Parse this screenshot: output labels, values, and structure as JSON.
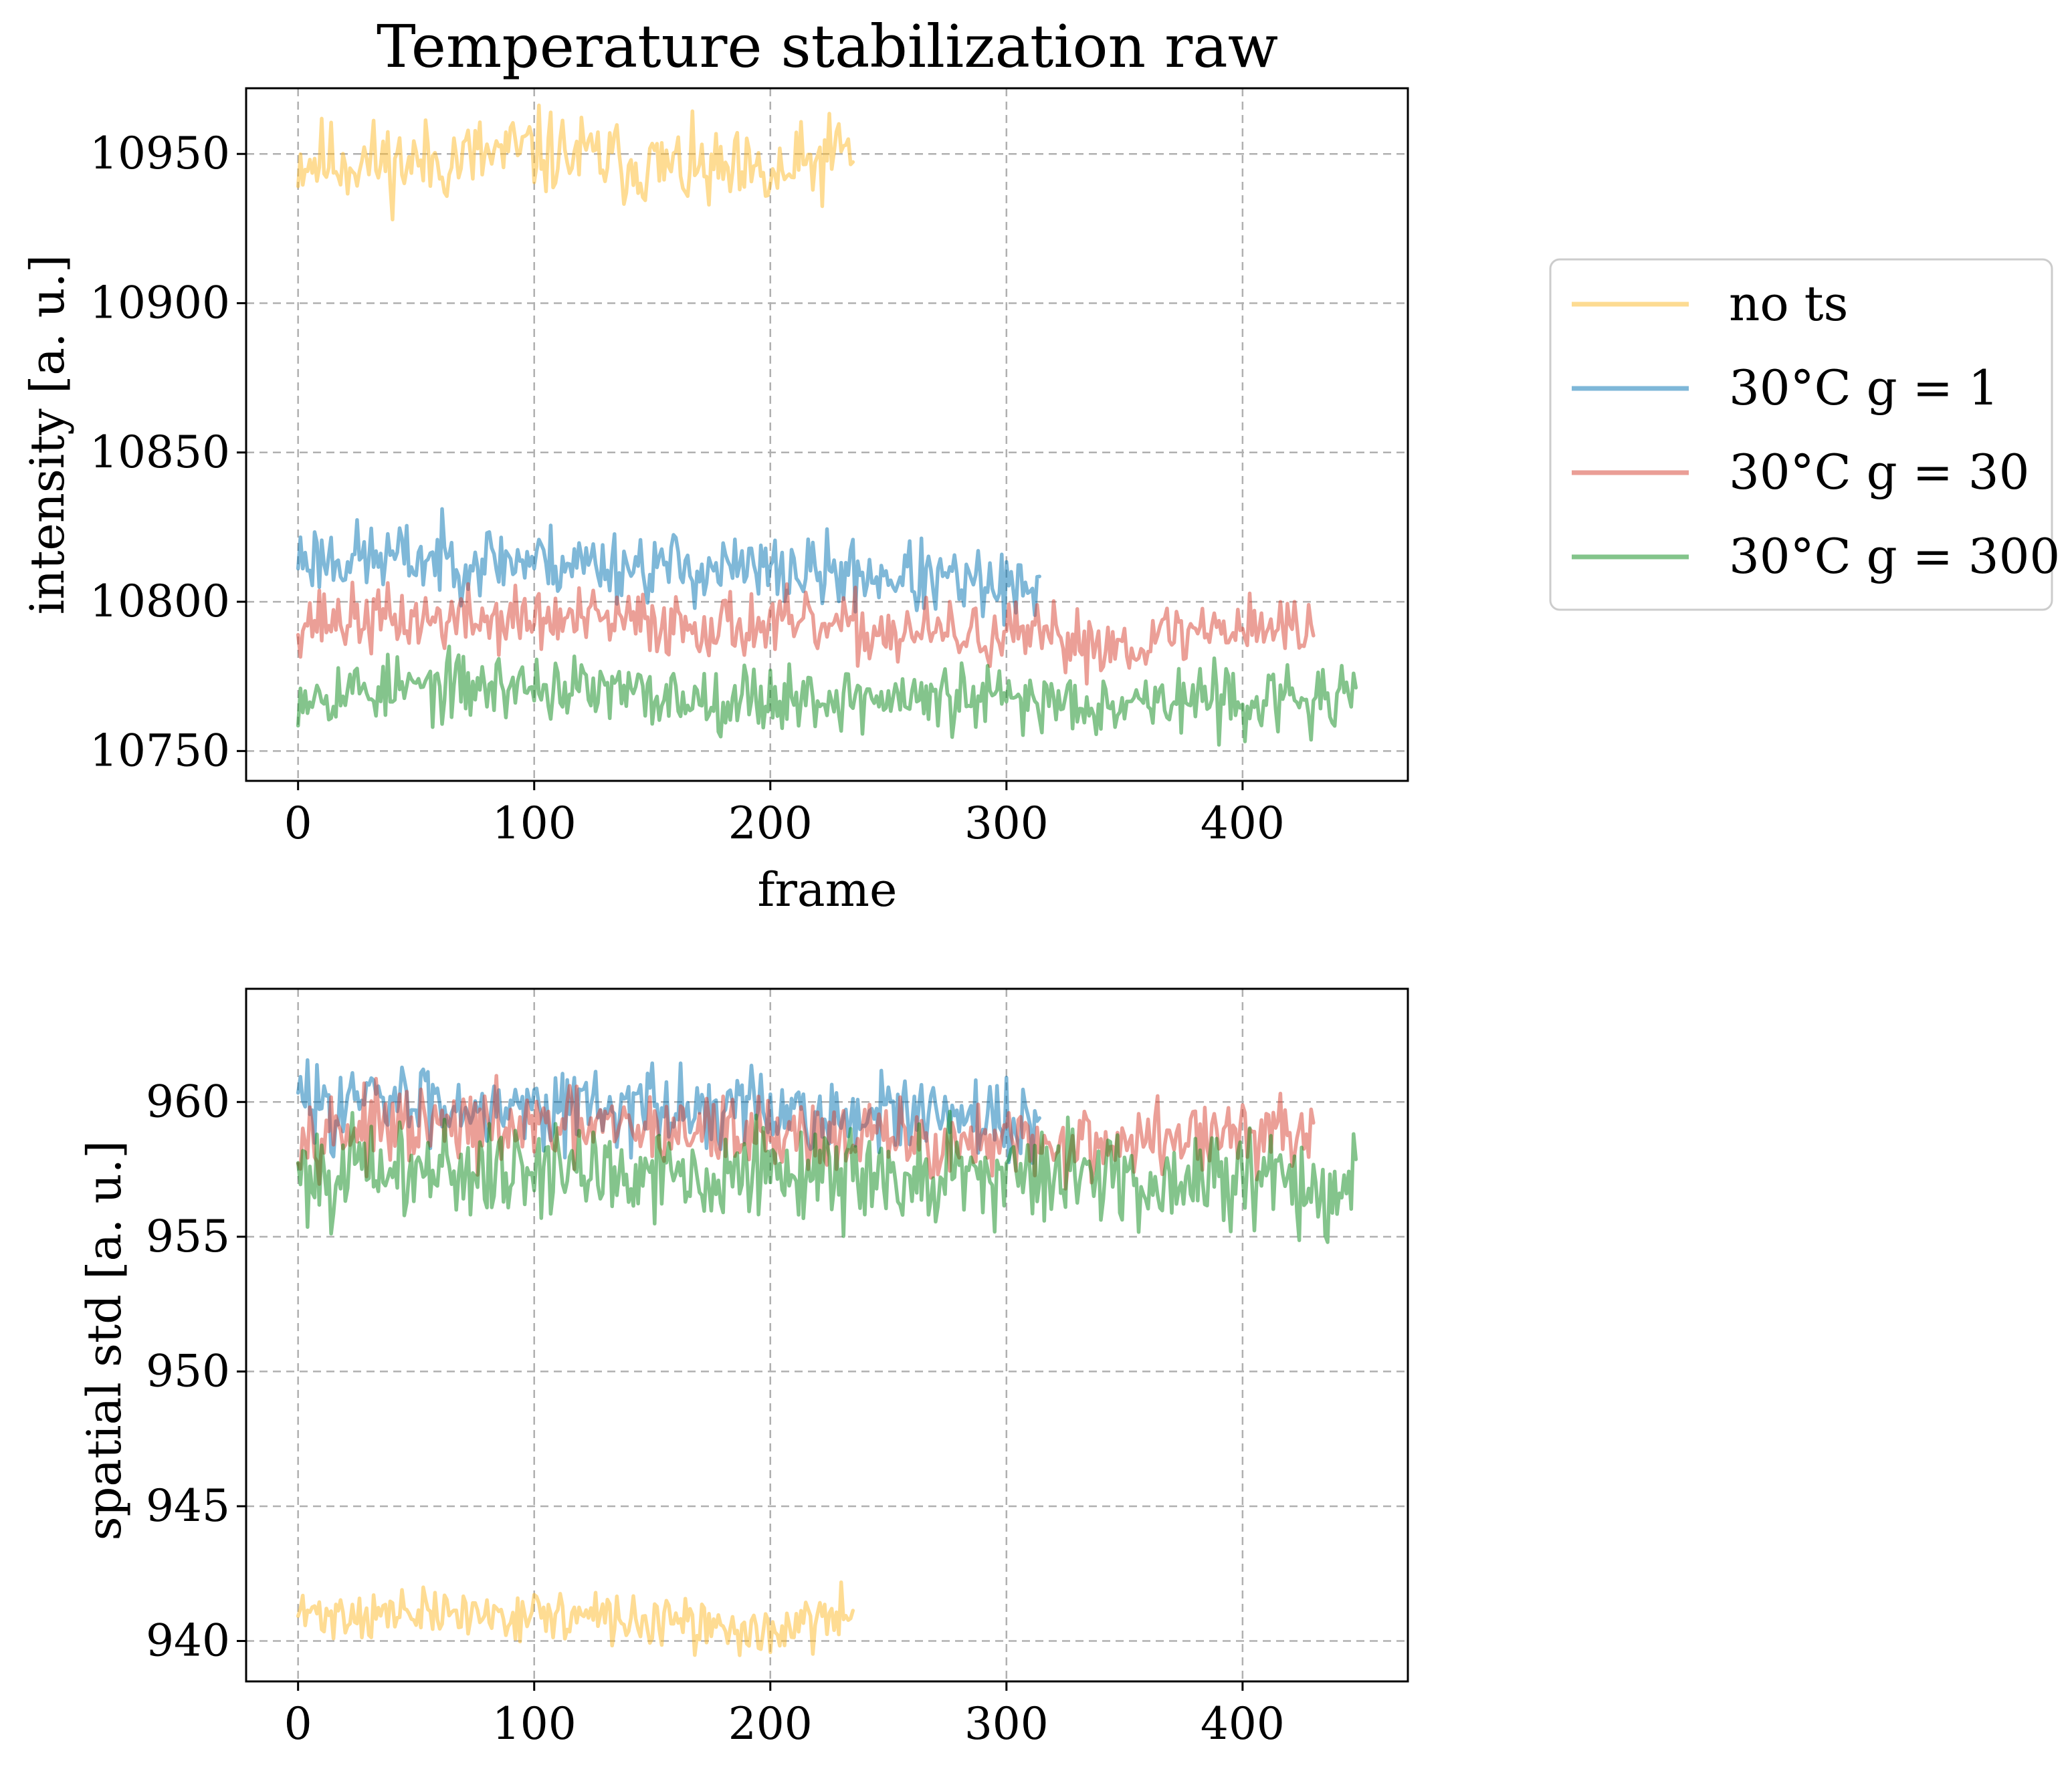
{
  "chart_data": [
    {
      "type": "line",
      "title": "Temperature stabilization raw",
      "xlabel": "frame",
      "ylabel": "intensity [a. u.]",
      "xlim": [
        -22,
        470
      ],
      "ylim": [
        10740,
        10972
      ],
      "xticks": [
        "0",
        "100",
        "200",
        "300",
        "400"
      ],
      "yticks": [
        "10750",
        "10800",
        "10850",
        "10900",
        "10950"
      ],
      "xtick_values": [
        0,
        100,
        200,
        300,
        400
      ],
      "ytick_values": [
        10750,
        10800,
        10850,
        10900,
        10950
      ],
      "grid": true,
      "legend_position": "right, outside",
      "series": [
        {
          "name": "no ts",
          "color": "#fdb927",
          "x_end": 235,
          "mean": 10946,
          "noise": 7,
          "seed": 11,
          "anchors": [
            [
              0,
              10948
            ],
            [
              50,
              10947
            ],
            [
              100,
              10951
            ],
            [
              150,
              10946
            ],
            [
              200,
              10941
            ],
            [
              235,
              10952
            ]
          ]
        },
        {
          "name": "30°C g = 1",
          "color": "#0072b2",
          "x_end": 314,
          "mean": 10810,
          "noise": 6,
          "seed": 23,
          "anchors": [
            [
              0,
              10815
            ],
            [
              100,
              10814
            ],
            [
              200,
              10810
            ],
            [
              250,
              10809
            ],
            [
              300,
              10804
            ],
            [
              314,
              10800
            ]
          ]
        },
        {
          "name": "30°C g = 30",
          "color": "#d7402f",
          "x_end": 430,
          "mean": 10792,
          "noise": 5.5,
          "seed": 37,
          "anchors": [
            [
              0,
              10794
            ],
            [
              100,
              10794
            ],
            [
              200,
              10792
            ],
            [
              300,
              10788
            ],
            [
              350,
              10786
            ],
            [
              400,
              10793
            ],
            [
              430,
              10790
            ]
          ]
        },
        {
          "name": "30°C g = 300",
          "color": "#0a8a1a",
          "x_end": 448,
          "mean": 10768,
          "noise": 5.5,
          "seed": 53,
          "anchors": [
            [
              0,
              10770
            ],
            [
              100,
              10772
            ],
            [
              150,
              10768
            ],
            [
              200,
              10768
            ],
            [
              300,
              10767
            ],
            [
              400,
              10767
            ],
            [
              448,
              10767
            ]
          ]
        }
      ]
    },
    {
      "type": "line",
      "title": "",
      "xlabel": "",
      "ylabel": "spatial std [a. u.]",
      "xlim": [
        -22,
        470
      ],
      "ylim": [
        938.5,
        964.2
      ],
      "xticks": [
        "0",
        "100",
        "200",
        "300",
        "400"
      ],
      "yticks": [
        "940",
        "945",
        "950",
        "955",
        "960"
      ],
      "xtick_values": [
        0,
        100,
        200,
        300,
        400
      ],
      "ytick_values": [
        940,
        945,
        950,
        955,
        960
      ],
      "grid": true,
      "series": [
        {
          "name": "no ts",
          "color": "#fdb927",
          "x_end": 235,
          "noise": 0.45,
          "seed": 71,
          "anchors": [
            [
              0,
              941.0
            ],
            [
              100,
              941.0
            ],
            [
              150,
              940.7
            ],
            [
              200,
              940.3
            ],
            [
              235,
              941.0
            ]
          ]
        },
        {
          "name": "30°C g = 1",
          "color": "#0072b2",
          "x_end": 314,
          "noise": 0.75,
          "seed": 83,
          "anchors": [
            [
              0,
              960.0
            ],
            [
              100,
              960.0
            ],
            [
              200,
              959.6
            ],
            [
              300,
              959.2
            ],
            [
              314,
              959.1
            ]
          ]
        },
        {
          "name": "30°C g = 30",
          "color": "#d7402f",
          "x_end": 430,
          "noise": 0.7,
          "seed": 97,
          "anchors": [
            [
              0,
              959.0
            ],
            [
              100,
              959.0
            ],
            [
              200,
              958.9
            ],
            [
              300,
              958.3
            ],
            [
              400,
              958.8
            ],
            [
              430,
              958.8
            ]
          ]
        },
        {
          "name": "30°C g = 300",
          "color": "#0a8a1a",
          "x_end": 448,
          "noise": 0.9,
          "seed": 101,
          "anchors": [
            [
              0,
              957.4
            ],
            [
              100,
              957.5
            ],
            [
              200,
              957.3
            ],
            [
              300,
              957.3
            ],
            [
              400,
              957.2
            ],
            [
              448,
              957.0
            ]
          ]
        }
      ]
    }
  ]
}
